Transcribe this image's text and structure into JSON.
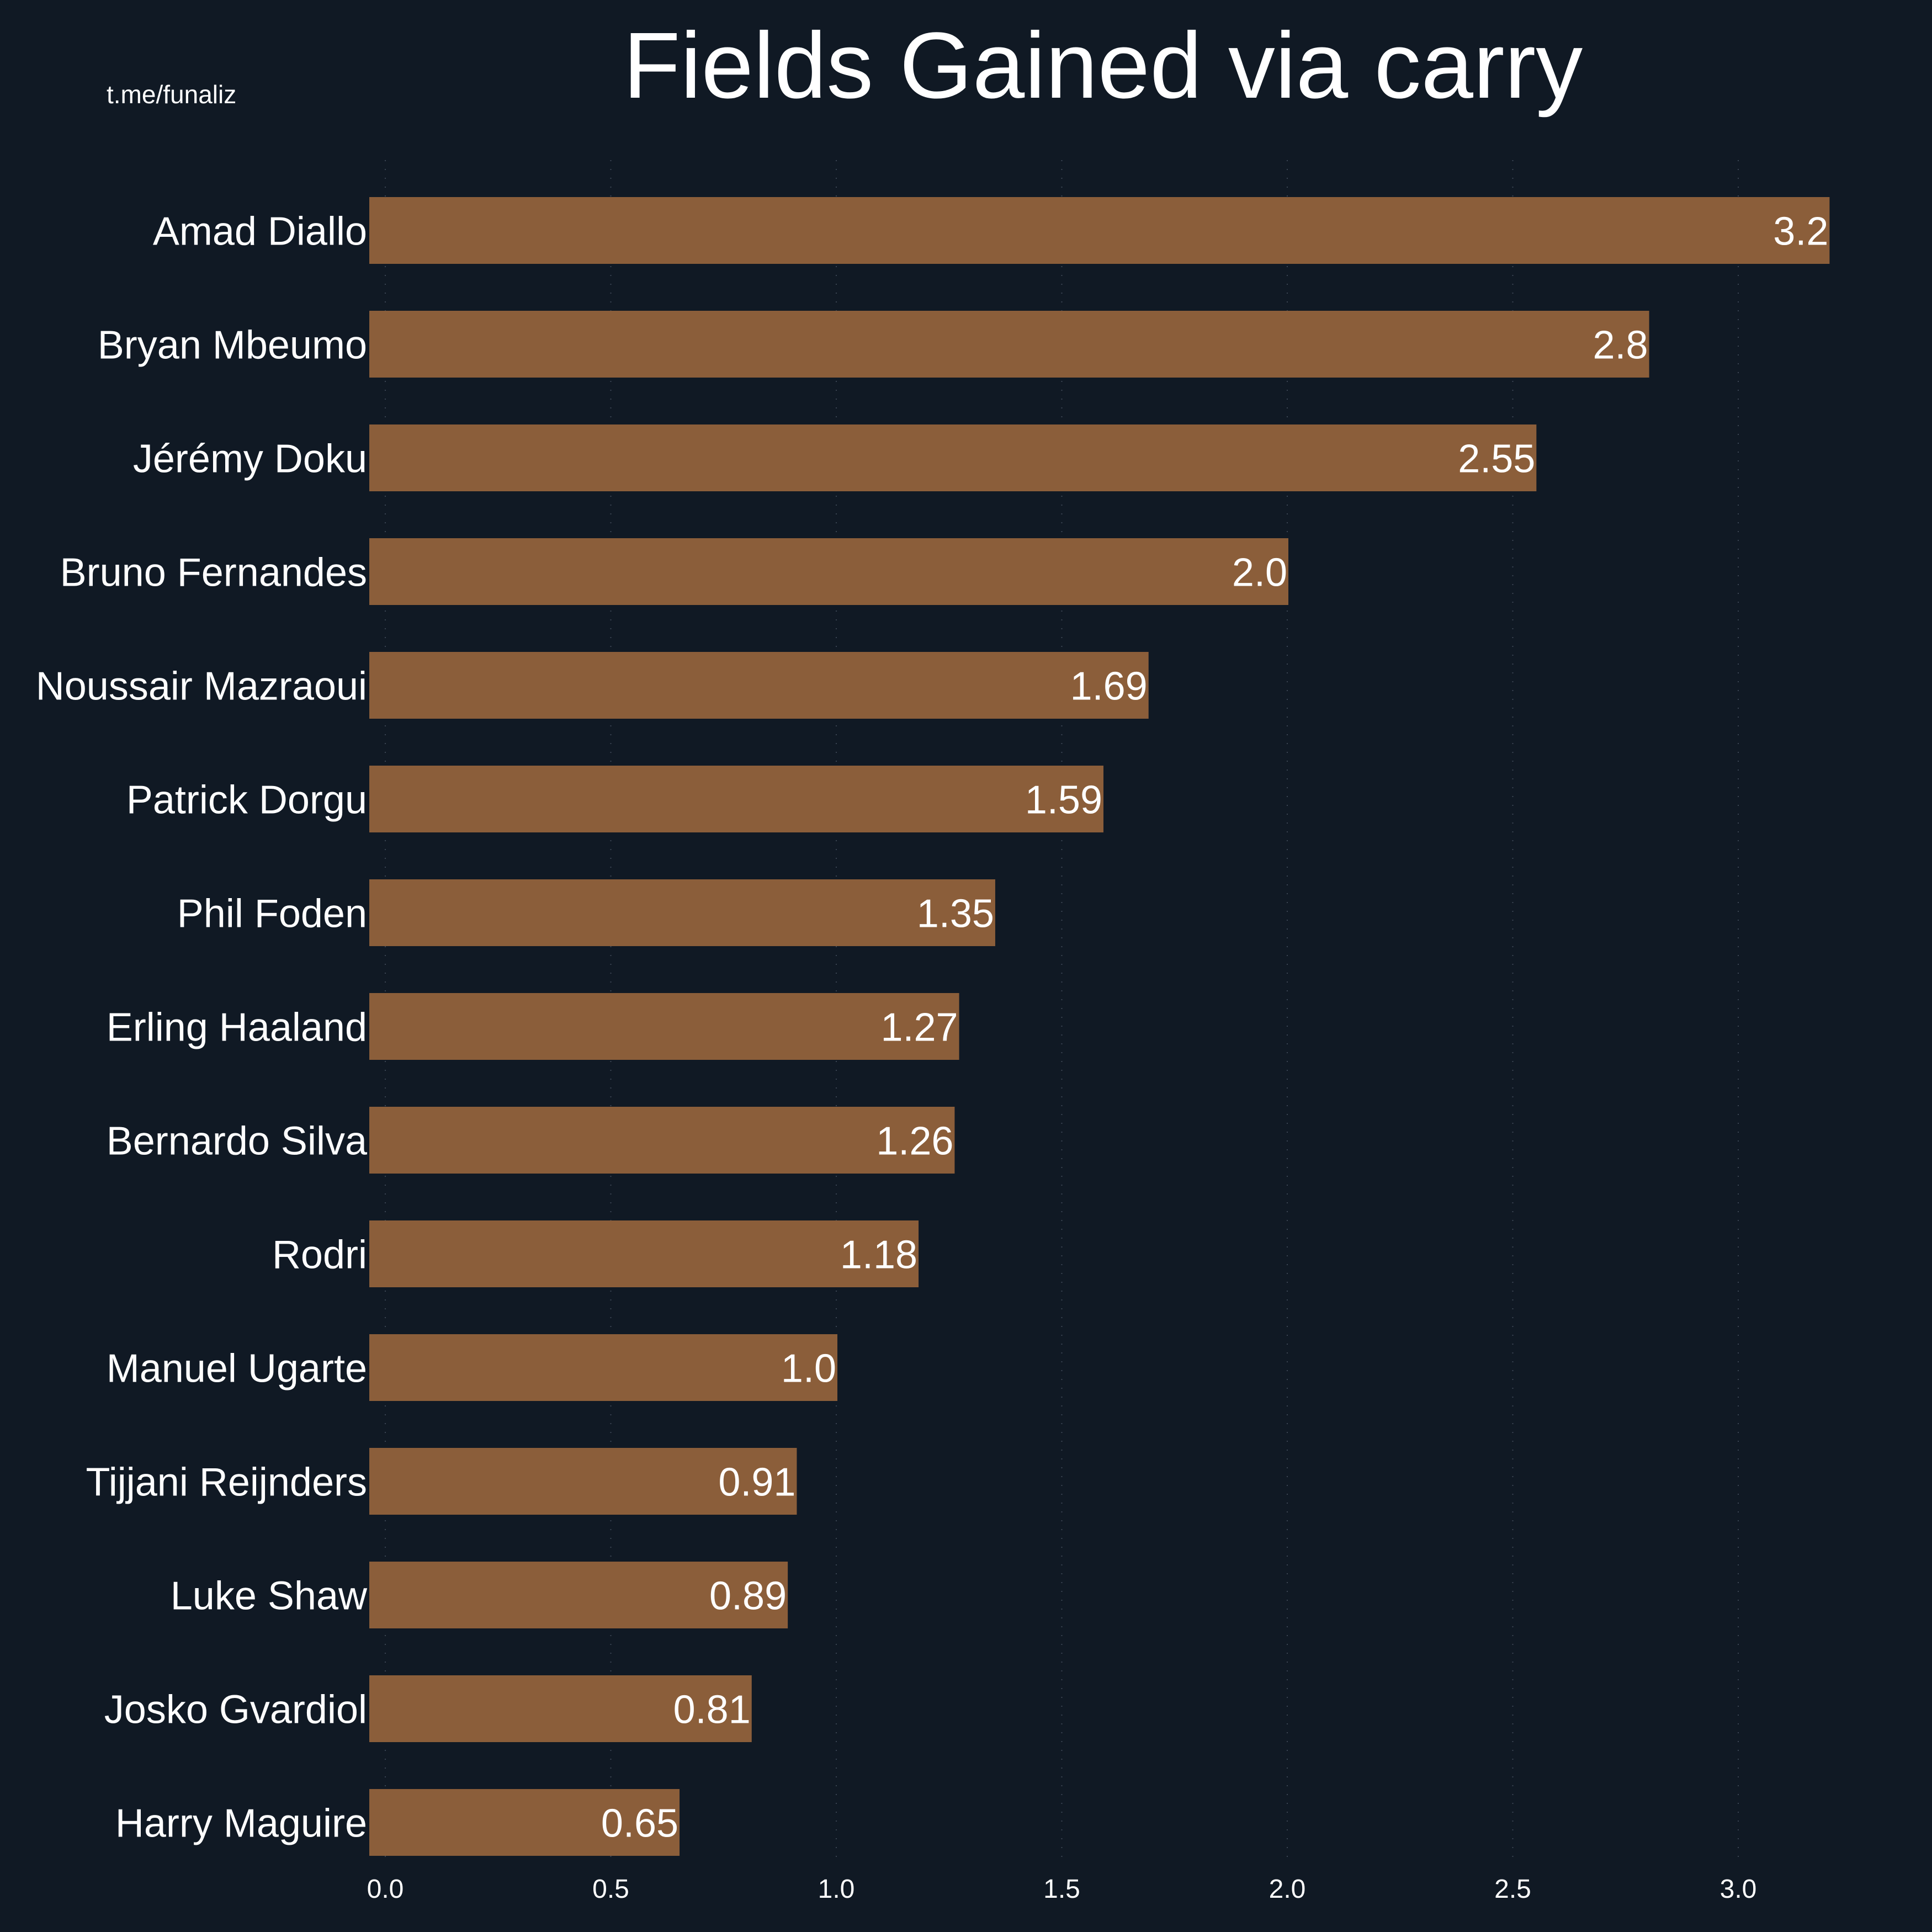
{
  "watermark": "t.me/funaliz",
  "colors": {
    "background": "#101924",
    "bar": "#8B5E3A",
    "text": "#ffffff"
  },
  "chart_data": {
    "type": "bar",
    "orientation": "horizontal",
    "title": "Fields Gained via carry",
    "xlabel": "",
    "ylabel": "",
    "xlim": [
      -0.035,
      3.3
    ],
    "grid": "x-dotted",
    "categories": [
      "Amad Diallo",
      "Bryan Mbeumo",
      "Jérémy Doku",
      "Bruno Fernandes",
      "Noussair Mazraoui",
      "Patrick Dorgu",
      "Phil Foden",
      "Erling Haaland",
      "Bernardo Silva",
      "Rodri",
      "Manuel Ugarte",
      "Tijjani Reijnders",
      "Luke Shaw",
      "Josko Gvardiol",
      "Harry Maguire"
    ],
    "values": [
      3.2,
      2.8,
      2.55,
      2.0,
      1.69,
      1.59,
      1.35,
      1.27,
      1.26,
      1.18,
      1.0,
      0.91,
      0.89,
      0.81,
      0.65
    ],
    "value_labels": [
      "3.2",
      "2.8",
      "2.55",
      "2.0",
      "1.69",
      "1.59",
      "1.35",
      "1.27",
      "1.26",
      "1.18",
      "1.0",
      "0.91",
      "0.89",
      "0.81",
      "0.65"
    ],
    "xticks": [
      0.0,
      0.5,
      1.0,
      1.5,
      2.0,
      2.5,
      3.0
    ],
    "xtick_labels": [
      "0.0",
      "0.5",
      "1.0",
      "1.5",
      "2.0",
      "2.5",
      "3.0"
    ]
  }
}
